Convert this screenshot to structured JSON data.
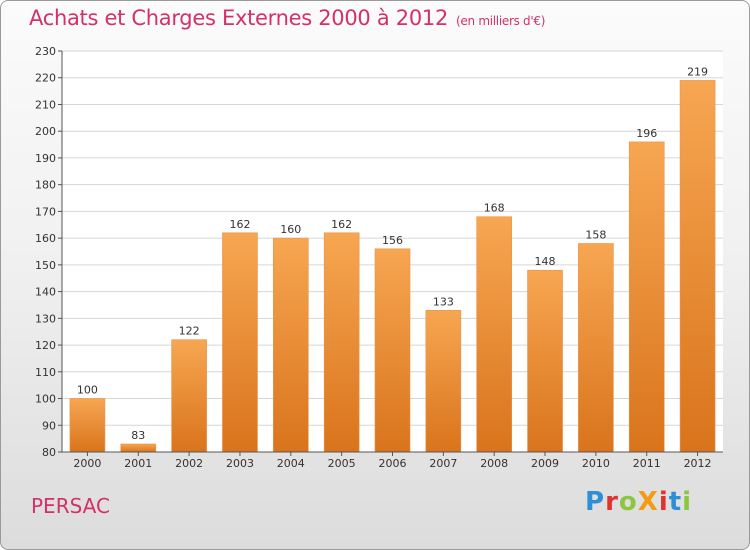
{
  "title": "Achats et Charges Externes 2000 à 2012",
  "unit": "(en milliers d'€)",
  "commune": "PERSAC",
  "logo": {
    "text": "ProXiti",
    "colors": [
      "#2e8fd6",
      "#e0322f",
      "#8cc63f",
      "#f39c12",
      "#e0322f",
      "#2e8fd6",
      "#8cc63f"
    ]
  },
  "colors": {
    "bar_light": "#f7a652",
    "bar_dark": "#d9741c",
    "title": "#d4306a"
  },
  "chart_data": {
    "type": "bar",
    "categories": [
      "2000",
      "2001",
      "2002",
      "2003",
      "2004",
      "2005",
      "2006",
      "2007",
      "2008",
      "2009",
      "2010",
      "2011",
      "2012"
    ],
    "values": [
      100,
      83,
      122,
      162,
      160,
      162,
      156,
      133,
      168,
      148,
      158,
      196,
      219
    ],
    "ylim": [
      80,
      230
    ],
    "yticks": [
      80,
      90,
      100,
      110,
      120,
      130,
      140,
      150,
      160,
      170,
      180,
      190,
      200,
      210,
      220,
      230
    ],
    "grid": true
  }
}
